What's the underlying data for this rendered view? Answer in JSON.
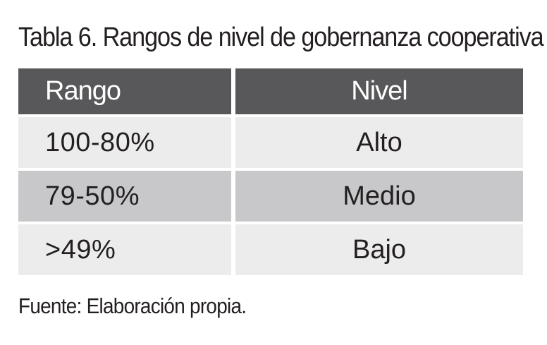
{
  "title": "Tabla 6. Rangos de nivel de gobernanza cooperativa",
  "table": {
    "headers": [
      "Rango",
      "Nivel"
    ],
    "rows": [
      [
        "100-80%",
        "Alto"
      ],
      [
        "79-50%",
        "Medio"
      ],
      [
        ">49%",
        "Bajo"
      ]
    ]
  },
  "source": "Fuente: Elaboración propia.",
  "colors": {
    "header_bg": "#58585a",
    "row_light": "#ececed",
    "row_dark": "#c8c8ca",
    "text": "#231f20"
  }
}
